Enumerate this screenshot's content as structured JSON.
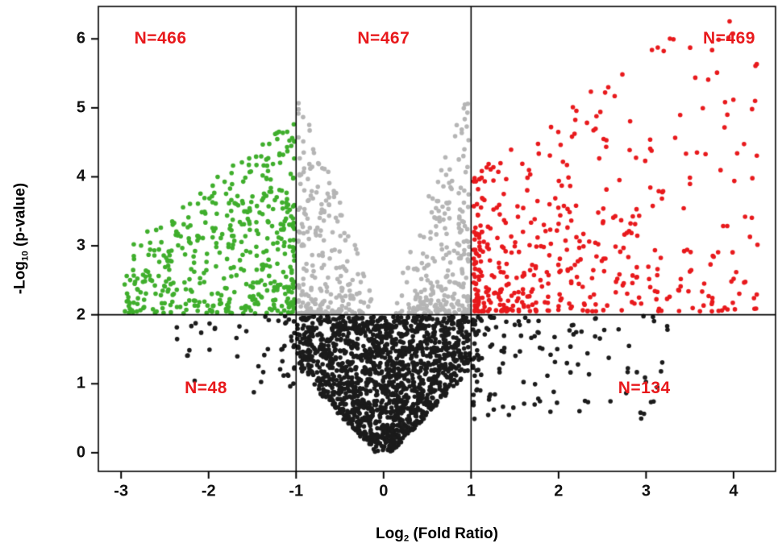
{
  "figure": {
    "background": "#ffffff",
    "xlabel": {
      "pre": "Log",
      "sub": "2",
      "post": " (Fold Ratio)"
    },
    "ylabel": {
      "pre": "-Log",
      "sub": "10",
      "post": " (p-value)"
    }
  },
  "chart_data": {
    "type": "scatter",
    "subtype": "volcano",
    "title": "",
    "xlabel": "Log2 (Fold Ratio)",
    "ylabel": "-Log10 (p-value)",
    "xlim": [
      -3.26,
      4.48
    ],
    "ylim": [
      -0.27,
      6.47
    ],
    "x_ticks": [
      -3,
      -2,
      -1,
      0,
      1,
      2,
      3,
      4
    ],
    "y_ticks": [
      0,
      1,
      2,
      3,
      4,
      5,
      6
    ],
    "grid": false,
    "legend": null,
    "thresholds": {
      "vlines": [
        -1,
        1
      ],
      "hline": 2,
      "line_color": "#000000"
    },
    "annotations": [
      {
        "text": "N=466",
        "x": -2.55,
        "y": 6.0,
        "color": "#e8191c"
      },
      {
        "text": "N=467",
        "x": 0.0,
        "y": 6.0,
        "color": "#e8191c"
      },
      {
        "text": "N=469",
        "x": 3.95,
        "y": 6.0,
        "color": "#e8191c"
      },
      {
        "text": "N=48",
        "x": -2.03,
        "y": 0.93,
        "color": "#e8191c"
      },
      {
        "text": "N=134",
        "x": 2.98,
        "y": 0.93,
        "color": "#e8191c"
      }
    ],
    "point_radius": 2.8,
    "seed": 42,
    "series": [
      {
        "name": "non-significant-center",
        "label": null,
        "color": "#1b1b1b",
        "count": 1600,
        "shape": "v-center",
        "params": {
          "h": 1.98,
          "ypow": 0.7,
          "w0": 0.1,
          "wslope": 0.74,
          "wmax": 0.985
        }
      },
      {
        "name": "non-significant-left",
        "label": "N=48",
        "color": "#1b1b1b",
        "count": 48,
        "shape": "tail-left",
        "params": {
          "x0": 1.02,
          "xspread": 1.5,
          "xpow": 2.2,
          "depth": 1.15,
          "ypow": 1.7
        }
      },
      {
        "name": "non-significant-right",
        "label": "N=134",
        "color": "#1b1b1b",
        "count": 134,
        "shape": "tail-right",
        "params": {
          "x0": 1.02,
          "xspread": 2.35,
          "xpow": 2.0,
          "depth": 1.5,
          "ypow": 1.6
        }
      },
      {
        "name": "significant-mid",
        "label": "N=467",
        "color": "#b5b5b5",
        "count": 467,
        "shape": "funnel-mid",
        "params": {
          "xmin": 0.08,
          "xmax": 0.98,
          "xpow": 0.5,
          "slope": 3.3,
          "ypow": 2.0
        }
      },
      {
        "name": "down-regulated",
        "label": "N=466",
        "color": "#3fae2c",
        "count": 466,
        "shape": "wedge-left",
        "params": {
          "x0": 1.02,
          "xspread": 1.95,
          "xpow": 1.6,
          "yh": 2.85,
          "ypow": 1.35,
          "falloff": 2.1
        }
      },
      {
        "name": "up-regulated",
        "label": "N=469",
        "color": "#e8191c",
        "count": 469,
        "shape": "cloud-right",
        "params": {
          "x0": 1.03,
          "xspread": 3.25,
          "xpow": 1.7,
          "ybase": 4.0,
          "yslope": 2.3,
          "yrange": 2.4,
          "ypow": 1.9
        }
      }
    ]
  }
}
